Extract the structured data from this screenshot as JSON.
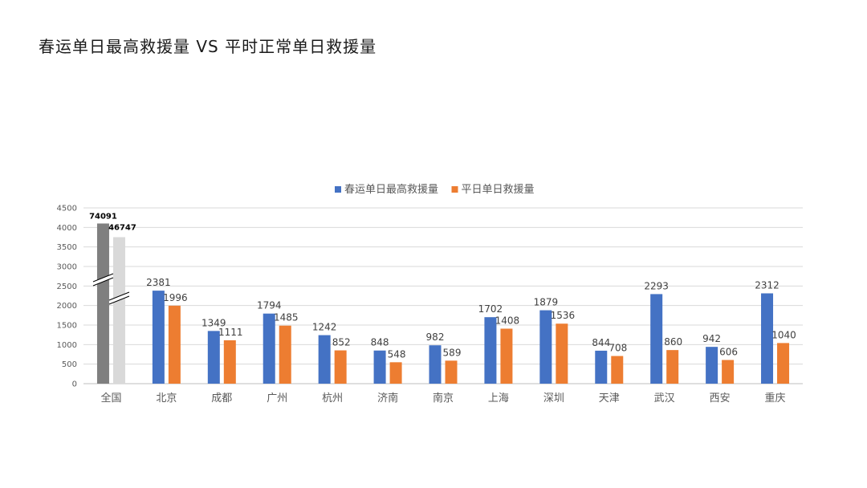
{
  "page": {
    "title": "春运单日最高救援量 VS 平时正常单日救援量"
  },
  "chart_data": {
    "type": "bar",
    "title": "春运单日最高救援量 VS 平时正常单日救援量",
    "xlabel": "",
    "ylabel": "",
    "ylim": [
      0,
      4500
    ],
    "yticks": [
      0,
      500,
      1000,
      1500,
      2000,
      2500,
      3000,
      3500,
      4000,
      4500
    ],
    "axis_break": true,
    "grid": true,
    "legend_position": "top-center",
    "categories": [
      "全国",
      "北京",
      "成都",
      "广州",
      "杭州",
      "济南",
      "南京",
      "上海",
      "深圳",
      "天津",
      "武汉",
      "西安",
      "重庆"
    ],
    "series": [
      {
        "name": "春运单日最高救援量",
        "color": "#4472C4",
        "values": [
          74091,
          2381,
          1349,
          1794,
          1242,
          848,
          982,
          1702,
          1879,
          844,
          2293,
          942,
          2312
        ]
      },
      {
        "name": "平日单日救援量",
        "color": "#ED7D31",
        "values": [
          46747,
          1996,
          1111,
          1485,
          852,
          548,
          589,
          1408,
          1536,
          708,
          860,
          606,
          1040
        ]
      }
    ],
    "national_bar_colors": [
      "#7F7F7F",
      "#D9D9D9"
    ],
    "national_display_values": [
      4100,
      3750
    ]
  }
}
